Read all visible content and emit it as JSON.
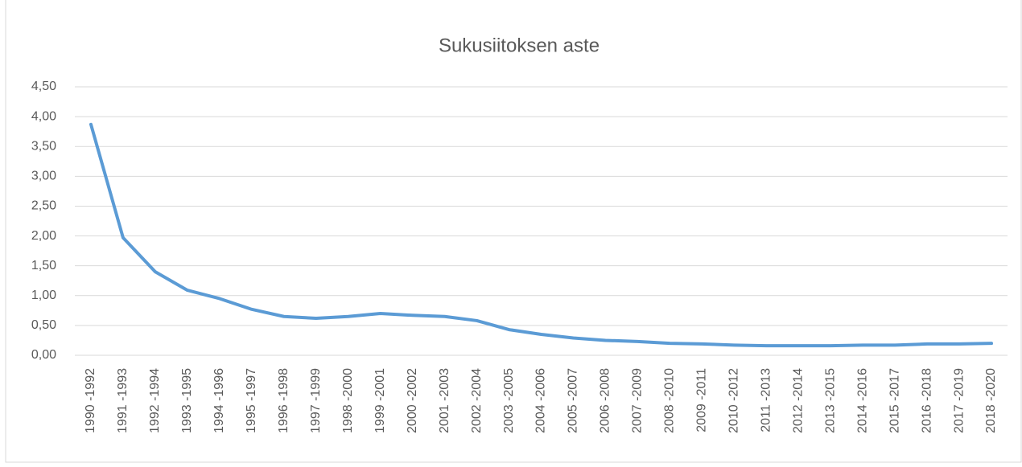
{
  "chart_data": {
    "type": "line",
    "title": "Sukusiitoksen aste",
    "categories": [
      "1990 -1992",
      "1991 -1993",
      "1992 -1994",
      "1993 -1995",
      "1994 -1996",
      "1995 -1997",
      "1996 -1998",
      "1997 -1999",
      "1998 -2000",
      "1999 -2001",
      "2000 -2002",
      "2001 -2003",
      "2002 -2004",
      "2003 -2005",
      "2004 -2006",
      "2005 -2007",
      "2006 -2008",
      "2007 -2009",
      "2008 -2010",
      "2009 -2011",
      "2010 -2012",
      "2011 -2013",
      "2012 -2014",
      "2013 -2015",
      "2014 -2016",
      "2015 -2017",
      "2016 -2018",
      "2017 -2019",
      "2018 -2020"
    ],
    "values": [
      3.87,
      1.97,
      1.4,
      1.09,
      0.95,
      0.77,
      0.65,
      0.62,
      0.65,
      0.7,
      0.67,
      0.65,
      0.58,
      0.43,
      0.35,
      0.29,
      0.25,
      0.23,
      0.2,
      0.19,
      0.17,
      0.16,
      0.16,
      0.16,
      0.17,
      0.17,
      0.19,
      0.19,
      0.2
    ],
    "color": "#5b9bd5",
    "ylim": [
      0,
      4.5
    ],
    "yticks": [
      {
        "value": 0,
        "label": "0,00"
      },
      {
        "value": 0.5,
        "label": "0,50"
      },
      {
        "value": 1,
        "label": "1,00"
      },
      {
        "value": 1.5,
        "label": "1,50"
      },
      {
        "value": 2,
        "label": "2,00"
      },
      {
        "value": 2.5,
        "label": "2,50"
      },
      {
        "value": 3,
        "label": "3,00"
      },
      {
        "value": 3.5,
        "label": "3,50"
      },
      {
        "value": 4,
        "label": "4,00"
      },
      {
        "value": 4.5,
        "label": "4,50"
      }
    ],
    "grid": true
  }
}
